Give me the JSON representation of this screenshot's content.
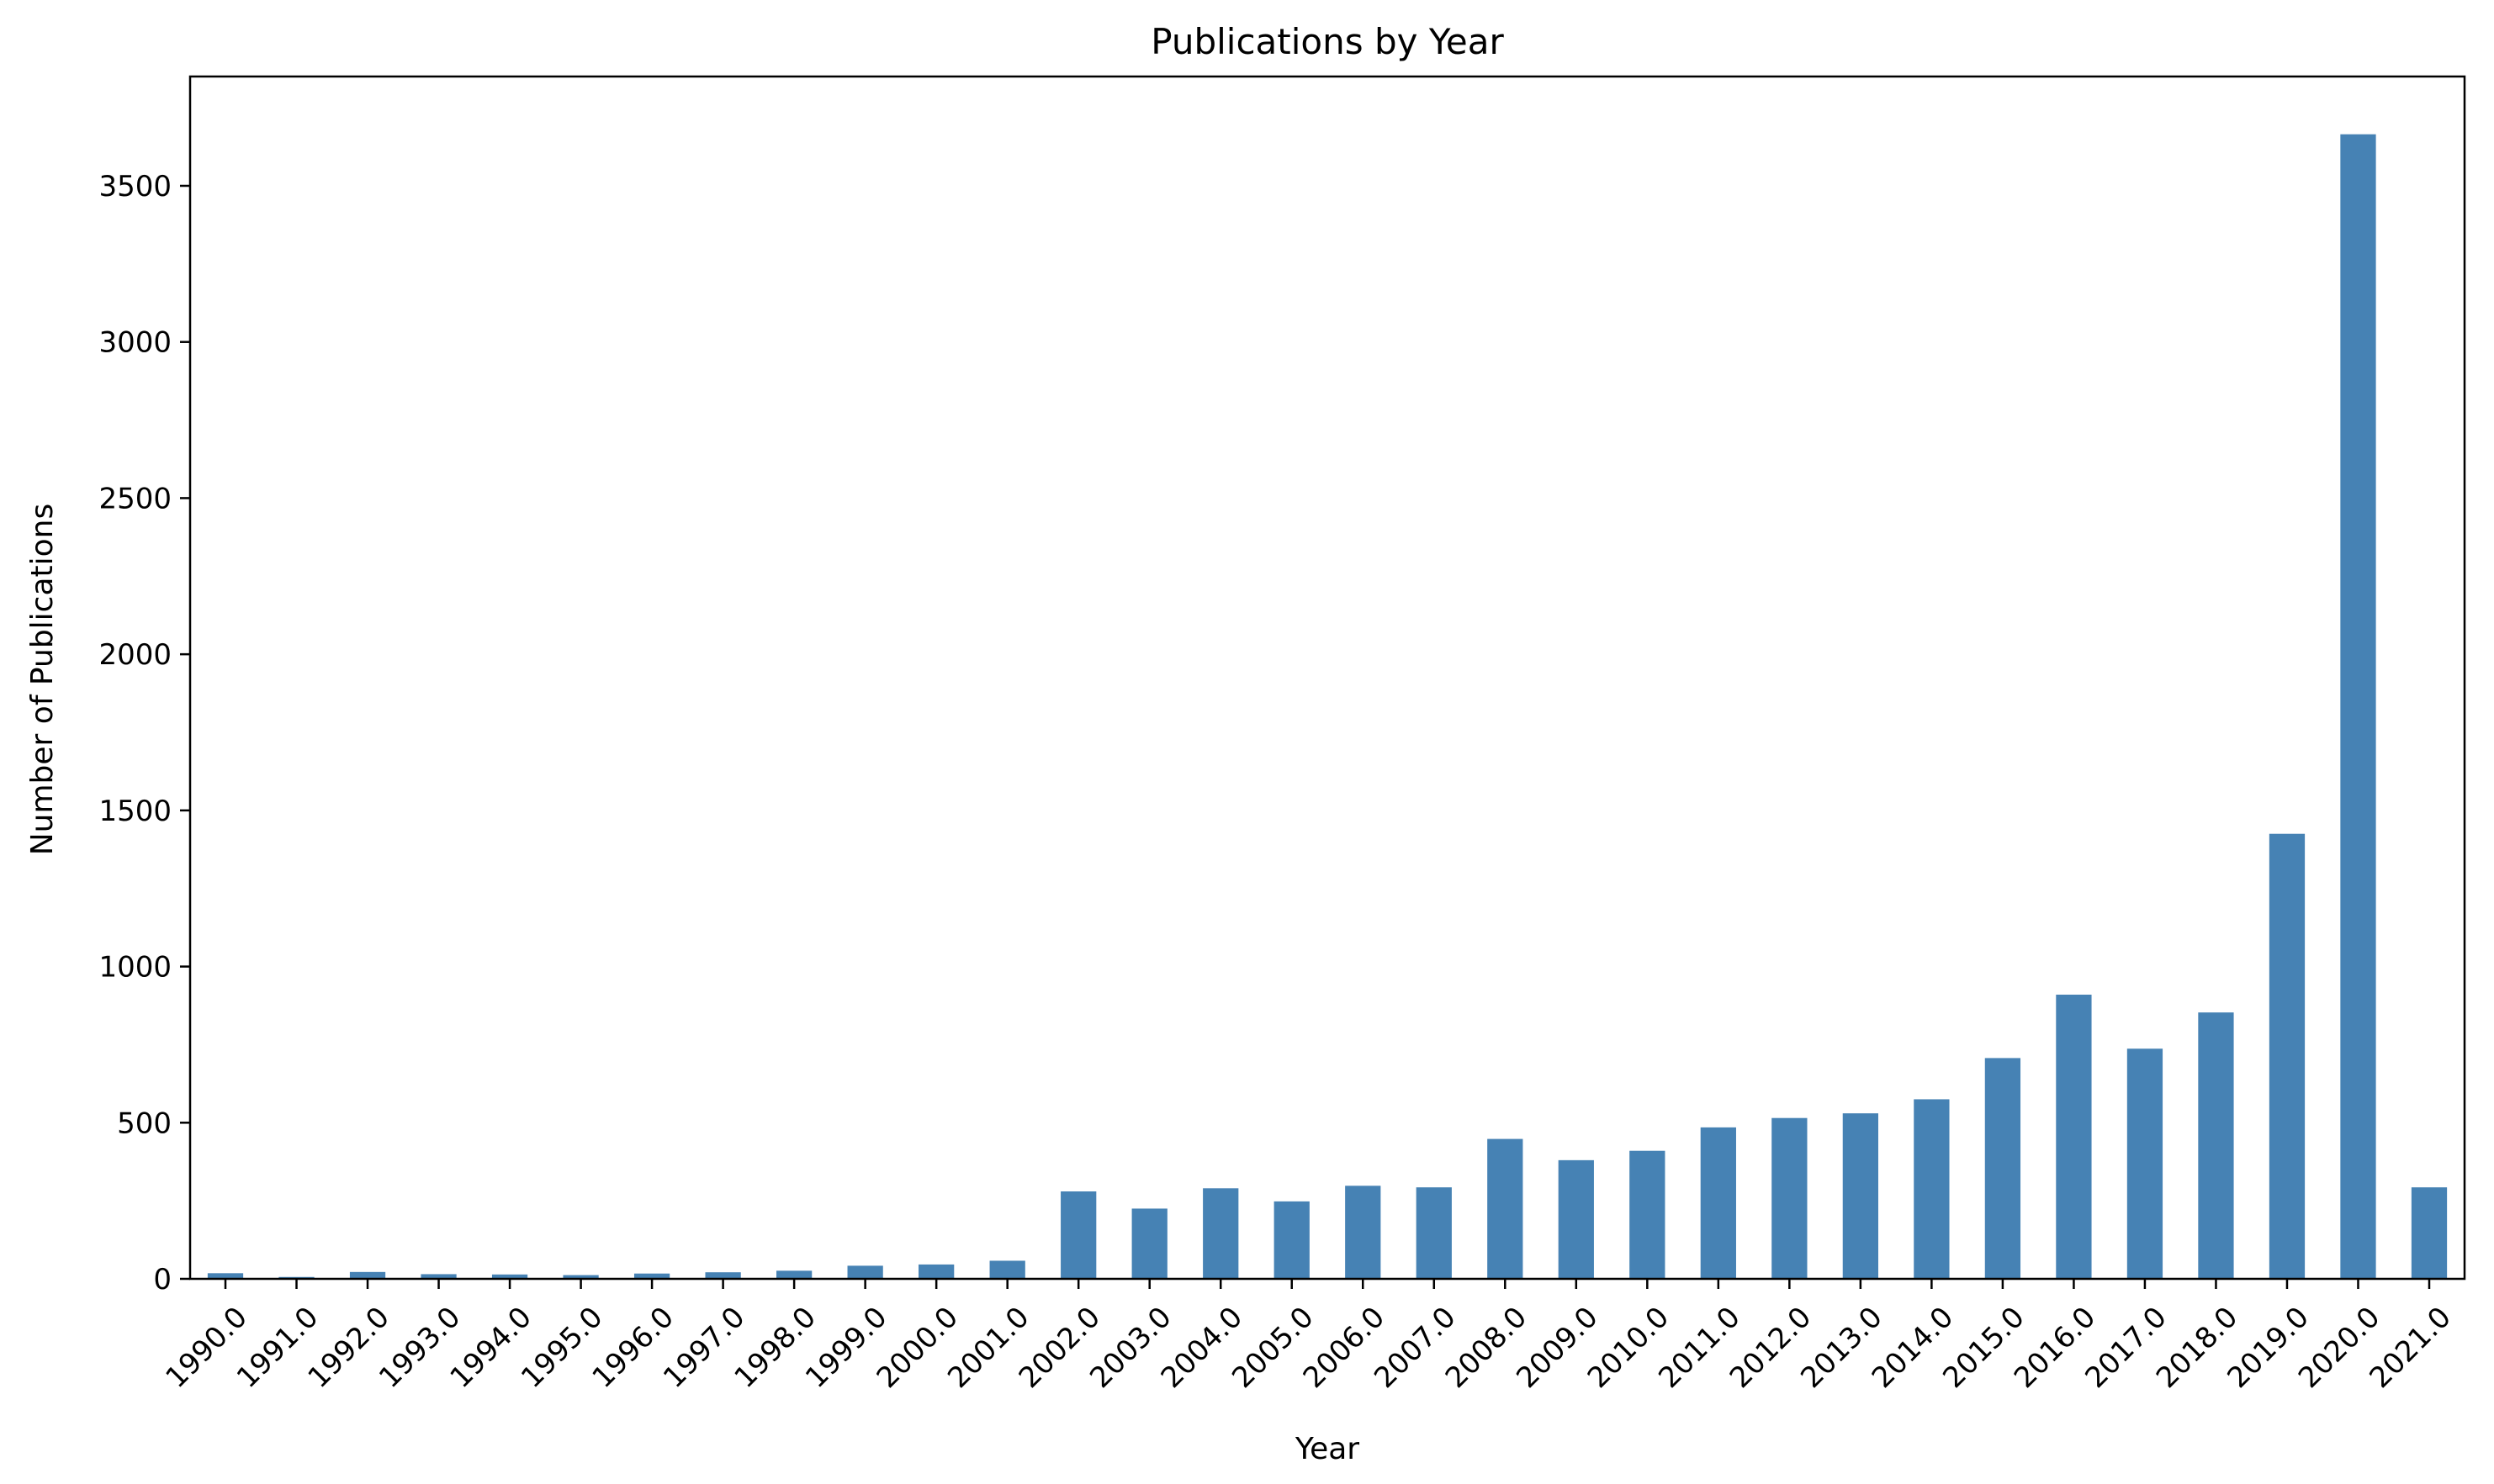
{
  "chart_data": {
    "type": "bar",
    "title": "Publications by Year",
    "xlabel": "Year",
    "ylabel": "Number of Publications",
    "categories": [
      "1990.0",
      "1991.0",
      "1992.0",
      "1993.0",
      "1994.0",
      "1995.0",
      "1996.0",
      "1997.0",
      "1998.0",
      "1999.0",
      "2000.0",
      "2001.0",
      "2002.0",
      "2003.0",
      "2004.0",
      "2005.0",
      "2006.0",
      "2007.0",
      "2008.0",
      "2009.0",
      "2010.0",
      "2011.0",
      "2012.0",
      "2013.0",
      "2014.0",
      "2015.0",
      "2016.0",
      "2017.0",
      "2018.0",
      "2019.0",
      "2020.0",
      "2021.0"
    ],
    "values": [
      18,
      6,
      22,
      15,
      14,
      12,
      17,
      21,
      26,
      42,
      46,
      58,
      280,
      225,
      290,
      248,
      298,
      293,
      448,
      380,
      410,
      485,
      515,
      530,
      575,
      707,
      910,
      737,
      853,
      1425,
      3665,
      293
    ],
    "ylim": [
      0,
      3850
    ],
    "yticks": [
      0,
      500,
      1000,
      1500,
      2000,
      2500,
      3000,
      3500
    ],
    "bar_color": "#4682b4",
    "grid": false,
    "legend": "none"
  }
}
